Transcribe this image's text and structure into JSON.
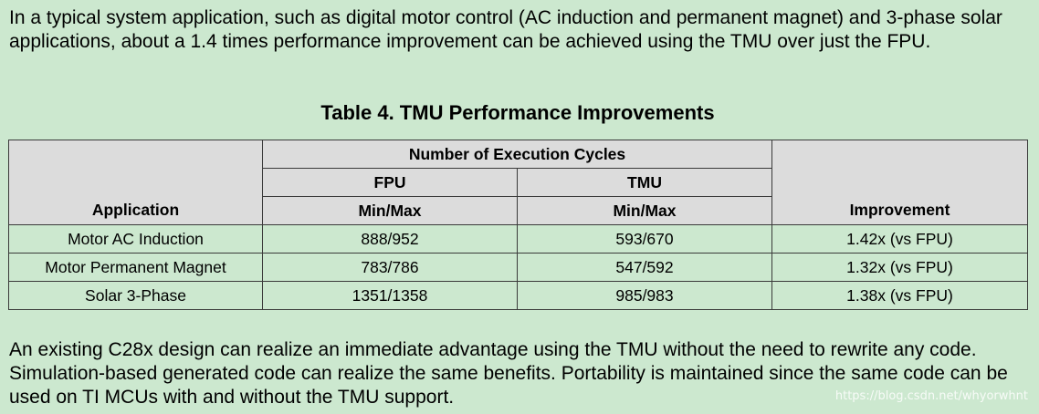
{
  "intro_text": "In a typical system application, such as digital motor control (AC induction and permanent magnet) and 3-phase solar applications, about a 1.4 times performance improvement can be achieved using the TMU over just the FPU.",
  "table": {
    "caption": "Table 4. TMU Performance Improvements",
    "group_header": "Number of Execution Cycles",
    "col_application": "Application",
    "col_fpu": "FPU",
    "col_tmu": "TMU",
    "col_fpu_sub": "Min/Max",
    "col_tmu_sub": "Min/Max",
    "col_improvement": "Improvement",
    "rows": [
      {
        "application": "Motor AC Induction",
        "fpu": "888/952",
        "tmu": "593/670",
        "improvement": "1.42x (vs FPU)"
      },
      {
        "application": "Motor Permanent Magnet",
        "fpu": "783/786",
        "tmu": "547/592",
        "improvement": "1.32x (vs FPU)"
      },
      {
        "application": "Solar 3-Phase",
        "fpu": "1351/1358",
        "tmu": "985/983",
        "improvement": "1.38x (vs FPU)"
      }
    ]
  },
  "outro_text": "An existing C28x design can realize an immediate advantage using the TMU without the need to rewrite any code. Simulation-based generated code can realize the same benefits. Portability is maintained since the same code can be used on TI MCUs with and without the TMU support.",
  "watermark": "https://blog.csdn.net/whyorwhnt"
}
